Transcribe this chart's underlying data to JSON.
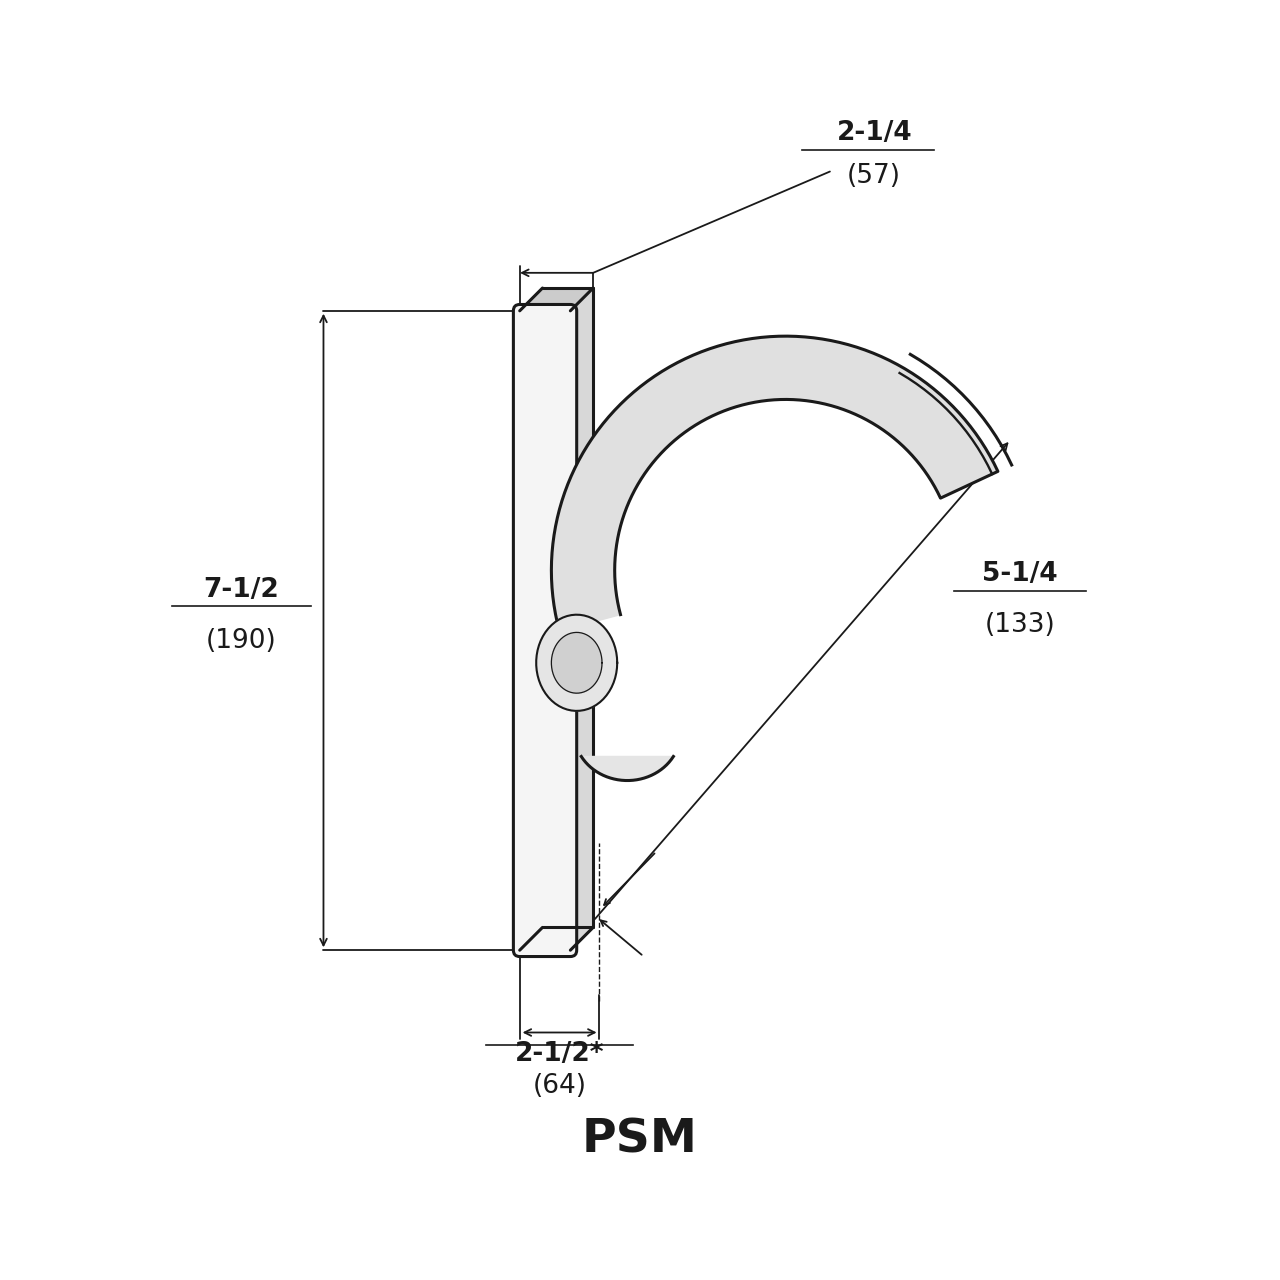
{
  "bg_color": "#ffffff",
  "line_color": "#1a1a1a",
  "title": "PSM",
  "title_fontsize": 34,
  "title_fontweight": "bold",
  "dim_fontsize": 19,
  "annotations": {
    "top_dim_label1": "2-1/4",
    "top_dim_label2": "(57)",
    "left_dim_label1": "7-1/2",
    "left_dim_label2": "(190)",
    "bottom_dim_label1": "2-1/2*",
    "bottom_dim_label2": "(64)",
    "right_dim_label1": "5-1/4",
    "right_dim_label2": "(133)"
  }
}
